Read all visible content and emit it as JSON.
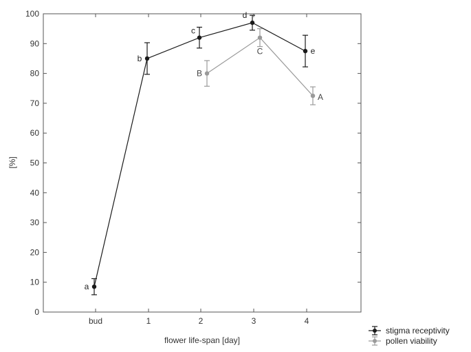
{
  "chart_data": {
    "type": "line",
    "categories": [
      "bud",
      "1",
      "2",
      "3",
      "4"
    ],
    "xlabel": "flower life-span [day]",
    "ylabel": "[%]",
    "ylim": [
      0,
      100
    ],
    "yticks": [
      0,
      10,
      20,
      30,
      40,
      50,
      60,
      70,
      80,
      90,
      100
    ],
    "grid": false,
    "legend_position": "bottom-right",
    "series": [
      {
        "name": "stigma receptivity",
        "color": "#1a1a1a",
        "x": [
          "bud",
          "1",
          "2",
          "3",
          "4"
        ],
        "values": [
          8.5,
          85,
          92,
          97,
          87.5
        ],
        "errors": [
          2.7,
          5.3,
          3.5,
          2.5,
          5.3
        ],
        "point_labels": [
          "a",
          "b",
          "c",
          "d",
          "e"
        ]
      },
      {
        "name": "pollen viability",
        "color": "#9a9a9a",
        "x": [
          "2",
          "3",
          "4"
        ],
        "values": [
          80,
          92,
          72.5
        ],
        "errors": [
          4.3,
          3.0,
          3.0
        ],
        "point_labels": [
          "B",
          "C",
          "A"
        ]
      }
    ]
  }
}
